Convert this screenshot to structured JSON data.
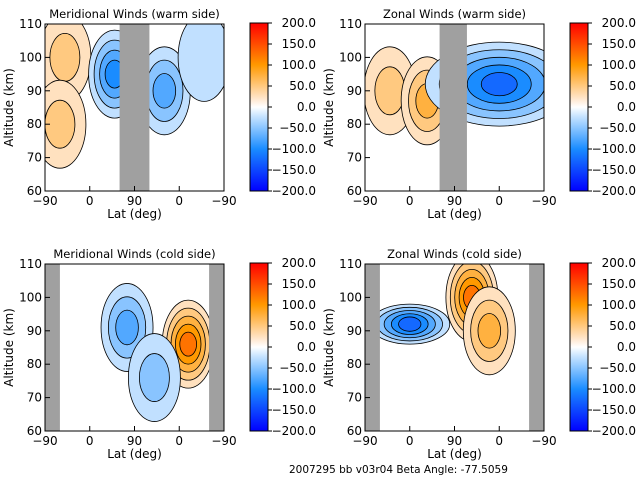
{
  "chart_data": [
    {
      "type": "heatmap",
      "title": "Meridional Winds (warm side)",
      "xlabel": "Lat (deg)",
      "ylabel": "Altitude (km)",
      "xticks": [
        "-90",
        "0",
        "90",
        "0",
        "-90"
      ],
      "yticks": [
        "60",
        "70",
        "80",
        "90",
        "100",
        "110"
      ],
      "ylim": [
        60,
        110
      ],
      "colorbar": {
        "ticks": [
          "200.0",
          "150.0",
          "100.0",
          "50.0",
          "0.0",
          "-50.0",
          "-100.0",
          "-150.0",
          "-200.0"
        ],
        "range": [
          -200,
          200
        ]
      },
      "masked_lat_ranges": [
        [
          60,
          120
        ]
      ],
      "features": [
        {
          "lat": -50,
          "alt": 100,
          "value": 60
        },
        {
          "lat": -60,
          "alt": 80,
          "value": 40
        },
        {
          "lat": 50,
          "alt": 95,
          "value": -110
        },
        {
          "lat": 150,
          "alt": 90,
          "value": -80
        },
        {
          "lat": 230,
          "alt": 100,
          "value": -30
        }
      ]
    },
    {
      "type": "heatmap",
      "title": "Zonal Winds (warm side)",
      "xlabel": "Lat (deg)",
      "ylabel": "Altitude (km)",
      "xticks": [
        "-90",
        "0",
        "90",
        "0",
        "-90"
      ],
      "yticks": [
        "60",
        "70",
        "80",
        "90",
        "100",
        "110"
      ],
      "ylim": [
        60,
        110
      ],
      "colorbar": {
        "ticks": [
          "200.0",
          "150.0",
          "100.0",
          "50.0",
          "0.0",
          "-50.0",
          "-100.0",
          "-150.0",
          "-200.0"
        ],
        "range": [
          -200,
          200
        ]
      },
      "masked_lat_ranges": [
        [
          60,
          115
        ]
      ],
      "features": [
        {
          "lat": -40,
          "alt": 90,
          "value": 50
        },
        {
          "lat": 35,
          "alt": 87,
          "value": 80
        },
        {
          "lat": 180,
          "alt": 92,
          "value": -130
        }
      ]
    },
    {
      "type": "heatmap",
      "title": "Meridional Winds (cold side)",
      "xlabel": "Lat (deg)",
      "ylabel": "Altitude (km)",
      "xticks": [
        "-90",
        "0",
        "90",
        "0",
        "-90"
      ],
      "yticks": [
        "60",
        "70",
        "80",
        "90",
        "100",
        "110"
      ],
      "ylim": [
        60,
        110
      ],
      "colorbar": {
        "ticks": [
          "200.0",
          "150.0",
          "100.0",
          "50.0",
          "0.0",
          "-50.0",
          "-100.0",
          "-150.0",
          "-200.0"
        ],
        "range": [
          -200,
          200
        ]
      },
      "masked_lat_ranges": [
        [
          -90,
          -60
        ],
        [
          240,
          270
        ]
      ],
      "features": [
        {
          "lat": 75,
          "alt": 91,
          "value": -70
        },
        {
          "lat": 198,
          "alt": 86,
          "value": 130
        },
        {
          "lat": 130,
          "alt": 76,
          "value": -40
        }
      ]
    },
    {
      "type": "heatmap",
      "title": "Zonal Winds (cold side)",
      "xlabel": "Lat (deg)",
      "ylabel": "Altitude (km)",
      "xticks": [
        "-90",
        "0",
        "90",
        "0",
        "-90"
      ],
      "yticks": [
        "60",
        "70",
        "80",
        "90",
        "100",
        "110"
      ],
      "ylim": [
        60,
        110
      ],
      "colorbar": {
        "ticks": [
          "200.0",
          "150.0",
          "100.0",
          "50.0",
          "0.0",
          "-50.0",
          "-100.0",
          "-150.0",
          "-200.0"
        ],
        "range": [
          -200,
          200
        ]
      },
      "masked_lat_ranges": [
        [
          -90,
          -60
        ],
        [
          240,
          270
        ]
      ],
      "features": [
        {
          "lat": 0,
          "alt": 92,
          "value": -120
        },
        {
          "lat": 125,
          "alt": 100,
          "value": 120
        },
        {
          "lat": 160,
          "alt": 90,
          "value": 70
        }
      ]
    }
  ],
  "footer": {
    "text": "2007295 bb v03r04   Beta Angle: -77.5059"
  }
}
